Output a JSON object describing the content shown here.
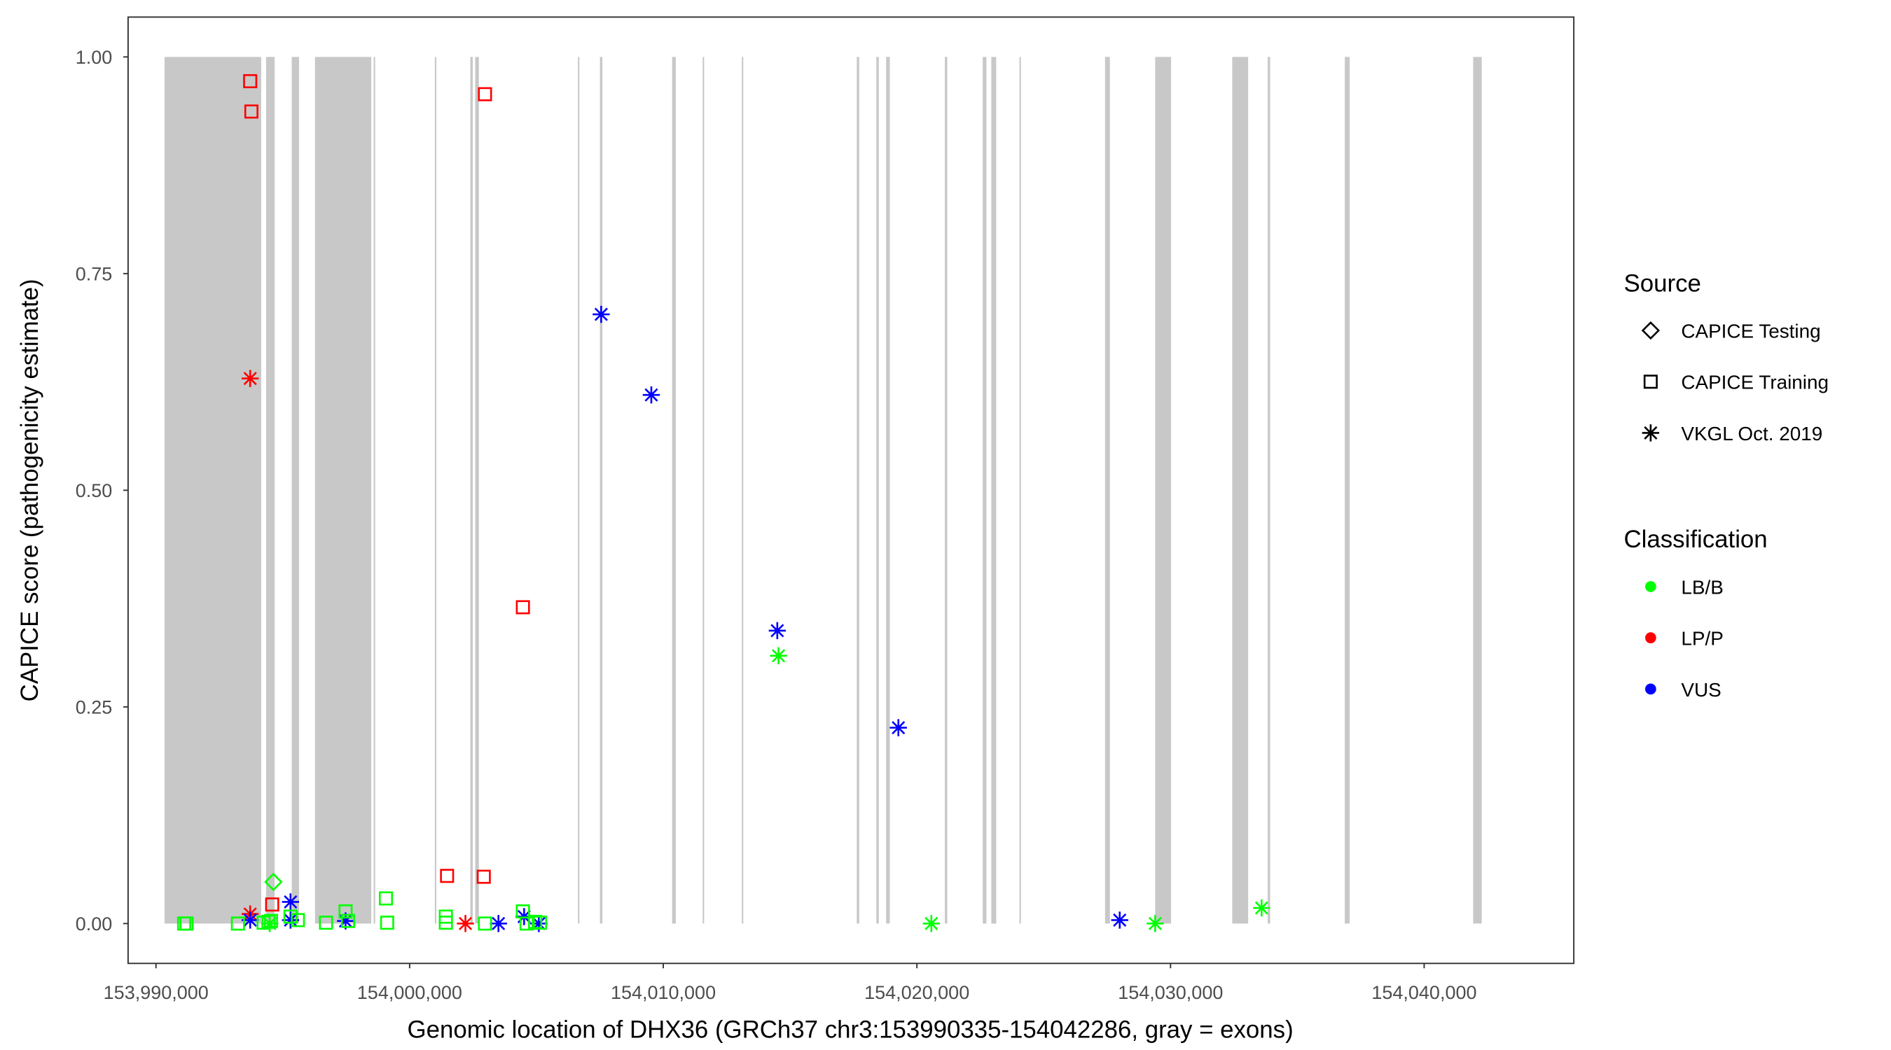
{
  "chart_data": {
    "type": "scatter",
    "xlabel": "Genomic location of DHX36 (GRCh37 chr3:153990335-154042286, gray = exons)",
    "ylabel": "CAPICE score (pathogenicity estimate)",
    "xlim": [
      153988900,
      154045900
    ],
    "ylim": [
      -0.046,
      1.046
    ],
    "x_ticks": [
      153990000,
      154000000,
      154010000,
      154020000,
      154030000,
      154040000
    ],
    "x_tick_labels": [
      "153,990,000",
      "154,000,000",
      "154,010,000",
      "154,020,000",
      "154,030,000",
      "154,040,000"
    ],
    "y_ticks": [
      0,
      0.25,
      0.5,
      0.75,
      1.0
    ],
    "y_tick_labels": [
      "0.00",
      "0.25",
      "0.50",
      "0.75",
      "1.00"
    ],
    "grid": false,
    "legend_placement": "right",
    "exon_color": "#c8c8c8",
    "exons": [
      [
        153990338,
        153994147
      ],
      [
        153994340,
        153994677
      ],
      [
        153995352,
        153995641
      ],
      [
        153996269,
        153998487
      ],
      [
        153998583,
        153998631
      ],
      [
        154000994,
        154001042
      ],
      [
        154002393,
        154002489
      ],
      [
        154002586,
        154002730
      ],
      [
        154006636,
        154006684
      ],
      [
        154007504,
        154007600
      ],
      [
        154010349,
        154010494
      ],
      [
        154011554,
        154011603
      ],
      [
        154013097,
        154013146
      ],
      [
        154017630,
        154017726
      ],
      [
        154018402,
        154018498
      ],
      [
        154018787,
        154018932
      ],
      [
        154021102,
        154021198
      ],
      [
        154022597,
        154022741
      ],
      [
        154022934,
        154023127
      ],
      [
        154024043,
        154024091
      ],
      [
        154027418,
        154027610
      ],
      [
        154029395,
        154030022
      ],
      [
        154032433,
        154033060
      ],
      [
        154033832,
        154033928
      ],
      [
        154036871,
        154037064
      ],
      [
        154041932,
        154042270
      ]
    ],
    "legend": {
      "source_title": "Source",
      "sources": [
        {
          "key": "testing",
          "label": "CAPICE Testing",
          "shape": "diamond"
        },
        {
          "key": "training",
          "label": "CAPICE Training",
          "shape": "square"
        },
        {
          "key": "vkgl",
          "label": "VKGL Oct. 2019",
          "shape": "asterisk"
        }
      ],
      "class_title": "Classification",
      "classes": [
        {
          "key": "LB/B",
          "label": "LB/B",
          "color": "#00ff00"
        },
        {
          "key": "LP/P",
          "label": "LP/P",
          "color": "#ff0000"
        },
        {
          "key": "VUS",
          "label": "VUS",
          "color": "#0000ff"
        }
      ]
    },
    "points": [
      {
        "x": 153993713,
        "y": 0.972,
        "source": "training",
        "class": "LP/P"
      },
      {
        "x": 153993761,
        "y": 0.937,
        "source": "training",
        "class": "LP/P"
      },
      {
        "x": 154002971,
        "y": 0.957,
        "source": "training",
        "class": "LP/P"
      },
      {
        "x": 154004466,
        "y": 0.365,
        "source": "training",
        "class": "LP/P"
      },
      {
        "x": 154001476,
        "y": 0.055,
        "source": "training",
        "class": "LP/P"
      },
      {
        "x": 154002923,
        "y": 0.054,
        "source": "training",
        "class": "LP/P"
      },
      {
        "x": 153994581,
        "y": 0.022,
        "source": "training",
        "class": "LP/P"
      },
      {
        "x": 153993713,
        "y": 0.629,
        "source": "vkgl",
        "class": "LP/P"
      },
      {
        "x": 153993713,
        "y": 0.011,
        "source": "vkgl",
        "class": "LP/P"
      },
      {
        "x": 154002200,
        "y": 0.0,
        "source": "vkgl",
        "class": "LP/P"
      },
      {
        "x": 154007552,
        "y": 0.703,
        "source": "vkgl",
        "class": "VUS"
      },
      {
        "x": 154009529,
        "y": 0.61,
        "source": "vkgl",
        "class": "VUS"
      },
      {
        "x": 154014496,
        "y": 0.338,
        "source": "vkgl",
        "class": "VUS"
      },
      {
        "x": 154019270,
        "y": 0.226,
        "source": "vkgl",
        "class": "VUS"
      },
      {
        "x": 154027997,
        "y": 0.004,
        "source": "vkgl",
        "class": "VUS"
      },
      {
        "x": 153993713,
        "y": 0.004,
        "source": "vkgl",
        "class": "VUS"
      },
      {
        "x": 153995304,
        "y": 0.025,
        "source": "vkgl",
        "class": "VUS"
      },
      {
        "x": 153995304,
        "y": 0.004,
        "source": "vkgl",
        "class": "VUS"
      },
      {
        "x": 153997474,
        "y": 0.003,
        "source": "vkgl",
        "class": "VUS"
      },
      {
        "x": 154003502,
        "y": 0.0,
        "source": "vkgl",
        "class": "VUS"
      },
      {
        "x": 154004514,
        "y": 0.008,
        "source": "vkgl",
        "class": "VUS"
      },
      {
        "x": 154005093,
        "y": 0.0,
        "source": "vkgl",
        "class": "VUS"
      },
      {
        "x": 154014544,
        "y": 0.309,
        "source": "vkgl",
        "class": "LB/B"
      },
      {
        "x": 154020571,
        "y": 0.0,
        "source": "vkgl",
        "class": "LB/B"
      },
      {
        "x": 154029396,
        "y": 0.0,
        "source": "vkgl",
        "class": "LB/B"
      },
      {
        "x": 154033591,
        "y": 0.018,
        "source": "vkgl",
        "class": "LB/B"
      },
      {
        "x": 153994484,
        "y": 0.0,
        "source": "vkgl",
        "class": "LB/B"
      },
      {
        "x": 153994629,
        "y": 0.048,
        "source": "testing",
        "class": "LB/B"
      },
      {
        "x": 153991109,
        "y": 0.0,
        "source": "training",
        "class": "LB/B"
      },
      {
        "x": 153991206,
        "y": 0.0,
        "source": "training",
        "class": "LB/B"
      },
      {
        "x": 153993231,
        "y": 0.0,
        "source": "training",
        "class": "LB/B"
      },
      {
        "x": 153994243,
        "y": 0.001,
        "source": "training",
        "class": "LB/B"
      },
      {
        "x": 153994436,
        "y": 0.002,
        "source": "training",
        "class": "LB/B"
      },
      {
        "x": 153994533,
        "y": 0.003,
        "source": "training",
        "class": "LB/B"
      },
      {
        "x": 153995304,
        "y": 0.008,
        "source": "training",
        "class": "LB/B"
      },
      {
        "x": 153995594,
        "y": 0.004,
        "source": "training",
        "class": "LB/B"
      },
      {
        "x": 153996703,
        "y": 0.001,
        "source": "training",
        "class": "LB/B"
      },
      {
        "x": 153997474,
        "y": 0.014,
        "source": "training",
        "class": "LB/B"
      },
      {
        "x": 153997571,
        "y": 0.003,
        "source": "training",
        "class": "LB/B"
      },
      {
        "x": 153999065,
        "y": 0.029,
        "source": "training",
        "class": "LB/B"
      },
      {
        "x": 153999114,
        "y": 0.001,
        "source": "training",
        "class": "LB/B"
      },
      {
        "x": 154001428,
        "y": 0.008,
        "source": "training",
        "class": "LB/B"
      },
      {
        "x": 154001428,
        "y": 0.001,
        "source": "training",
        "class": "LB/B"
      },
      {
        "x": 154002971,
        "y": 0.0,
        "source": "training",
        "class": "LB/B"
      },
      {
        "x": 154004466,
        "y": 0.014,
        "source": "training",
        "class": "LB/B"
      },
      {
        "x": 154004611,
        "y": 0.0,
        "source": "training",
        "class": "LB/B"
      },
      {
        "x": 154004948,
        "y": 0.002,
        "source": "training",
        "class": "LB/B"
      },
      {
        "x": 154005141,
        "y": 0.001,
        "source": "training",
        "class": "LB/B"
      }
    ]
  }
}
